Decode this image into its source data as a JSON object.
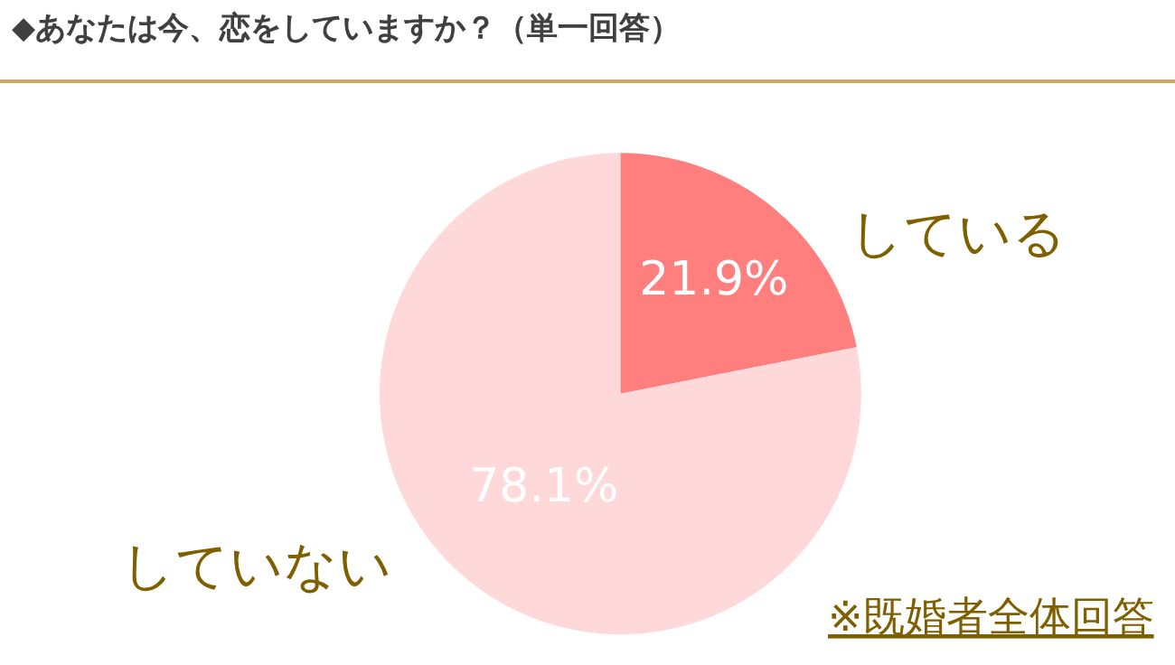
{
  "chart_data": {
    "type": "pie",
    "title": "◆あなたは今、恋をしていますか？（単一回答）",
    "categories": [
      "している",
      "していない"
    ],
    "values": [
      21.9,
      78.1
    ],
    "colors": [
      "#ff7f7f",
      "#ffd9d9"
    ],
    "value_labels": [
      "21.9%",
      "78.1%"
    ],
    "annotations": [
      "※既婚者全体回答"
    ]
  }
}
